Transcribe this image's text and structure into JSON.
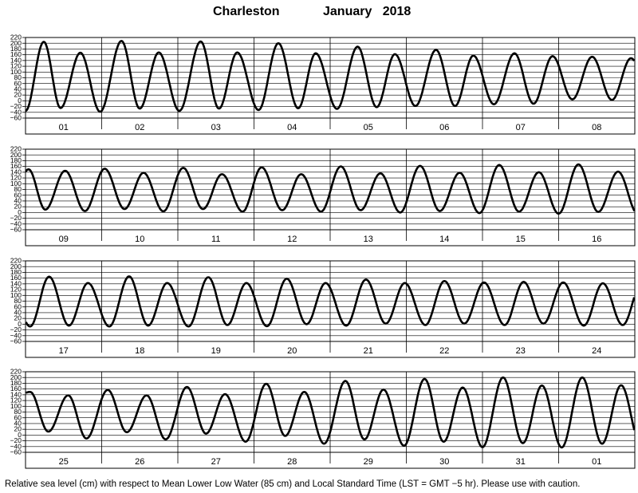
{
  "title": {
    "station": "Charleston",
    "month": "January   2018"
  },
  "footer_note": "Relative sea level (cm) with respect to Mean Lower Low Water (85 cm) and Local Standard Time (LST = GMT −5 hr). Please use with caution.",
  "chart_data": {
    "type": "line",
    "ylabel": "Relative sea level (cm)",
    "yticks": [
      "220",
      "200",
      "180",
      "160",
      "140",
      "120",
      "100",
      "80",
      "60",
      "40",
      "20",
      "0",
      "−20",
      "−40",
      "−60"
    ],
    "ylim": [
      -60,
      220
    ],
    "grid": true,
    "panels": [
      {
        "days": [
          "01",
          "02",
          "03",
          "04",
          "05",
          "06",
          "07",
          "08"
        ],
        "extremes": [
          {
            "day": 0.0,
            "h": -35
          },
          {
            "day": 0.24,
            "h": 205
          },
          {
            "day": 0.46,
            "h": -25
          },
          {
            "day": 0.72,
            "h": 167
          },
          {
            "day": 0.98,
            "h": -38
          },
          {
            "day": 1.26,
            "h": 208
          },
          {
            "day": 1.5,
            "h": -27
          },
          {
            "day": 1.75,
            "h": 168
          },
          {
            "day": 2.02,
            "h": -35
          },
          {
            "day": 2.3,
            "h": 206
          },
          {
            "day": 2.54,
            "h": -27
          },
          {
            "day": 2.78,
            "h": 168
          },
          {
            "day": 3.06,
            "h": -32
          },
          {
            "day": 3.32,
            "h": 200
          },
          {
            "day": 3.58,
            "h": -26
          },
          {
            "day": 3.81,
            "h": 165
          },
          {
            "day": 4.09,
            "h": -28
          },
          {
            "day": 4.36,
            "h": 188
          },
          {
            "day": 4.61,
            "h": -22
          },
          {
            "day": 4.85,
            "h": 162
          },
          {
            "day": 5.12,
            "h": -18
          },
          {
            "day": 5.39,
            "h": 177
          },
          {
            "day": 5.64,
            "h": -18
          },
          {
            "day": 5.88,
            "h": 157
          },
          {
            "day": 6.15,
            "h": -12
          },
          {
            "day": 6.42,
            "h": 165
          },
          {
            "day": 6.67,
            "h": -10
          },
          {
            "day": 6.92,
            "h": 155
          },
          {
            "day": 7.18,
            "h": 5
          },
          {
            "day": 7.44,
            "h": 153
          },
          {
            "day": 7.7,
            "h": 3
          },
          {
            "day": 7.95,
            "h": 148
          },
          {
            "day": 8.2,
            "h": 10
          }
        ]
      },
      {
        "days": [
          "09",
          "10",
          "11",
          "12",
          "13",
          "14",
          "15",
          "16"
        ],
        "extremes": [
          {
            "day": -0.04,
            "h": 135
          },
          {
            "day": 0.04,
            "h": 150
          },
          {
            "day": 0.26,
            "h": 10
          },
          {
            "day": 0.52,
            "h": 145
          },
          {
            "day": 0.78,
            "h": 5
          },
          {
            "day": 1.04,
            "h": 152
          },
          {
            "day": 1.3,
            "h": 12
          },
          {
            "day": 1.55,
            "h": 138
          },
          {
            "day": 1.81,
            "h": 4
          },
          {
            "day": 2.07,
            "h": 155
          },
          {
            "day": 2.33,
            "h": 12
          },
          {
            "day": 2.58,
            "h": 133
          },
          {
            "day": 2.85,
            "h": 3
          },
          {
            "day": 3.1,
            "h": 157
          },
          {
            "day": 3.37,
            "h": 8
          },
          {
            "day": 3.62,
            "h": 133
          },
          {
            "day": 3.88,
            "h": 3
          },
          {
            "day": 4.14,
            "h": 160
          },
          {
            "day": 4.4,
            "h": 8
          },
          {
            "day": 4.66,
            "h": 136
          },
          {
            "day": 4.92,
            "h": 0
          },
          {
            "day": 5.18,
            "h": 162
          },
          {
            "day": 5.44,
            "h": 5
          },
          {
            "day": 5.7,
            "h": 138
          },
          {
            "day": 5.96,
            "h": -2
          },
          {
            "day": 6.22,
            "h": 165
          },
          {
            "day": 6.48,
            "h": 3
          },
          {
            "day": 6.74,
            "h": 140
          },
          {
            "day": 7.0,
            "h": -4
          },
          {
            "day": 7.26,
            "h": 167
          },
          {
            "day": 7.52,
            "h": 2
          },
          {
            "day": 7.78,
            "h": 142
          },
          {
            "day": 8.04,
            "h": -5
          }
        ]
      },
      {
        "days": [
          "17",
          "18",
          "19",
          "20",
          "21",
          "22",
          "23",
          "24"
        ],
        "extremes": [
          {
            "day": -0.2,
            "h": 140
          },
          {
            "day": 0.06,
            "h": -8
          },
          {
            "day": 0.31,
            "h": 165
          },
          {
            "day": 0.57,
            "h": -5
          },
          {
            "day": 0.82,
            "h": 143
          },
          {
            "day": 1.1,
            "h": -8
          },
          {
            "day": 1.36,
            "h": 166
          },
          {
            "day": 1.61,
            "h": -5
          },
          {
            "day": 1.86,
            "h": 143
          },
          {
            "day": 2.14,
            "h": -8
          },
          {
            "day": 2.4,
            "h": 163
          },
          {
            "day": 2.65,
            "h": -3
          },
          {
            "day": 2.9,
            "h": 143
          },
          {
            "day": 3.17,
            "h": -7
          },
          {
            "day": 3.43,
            "h": 158
          },
          {
            "day": 3.69,
            "h": 0
          },
          {
            "day": 3.94,
            "h": 143
          },
          {
            "day": 4.21,
            "h": -5
          },
          {
            "day": 4.47,
            "h": 155
          },
          {
            "day": 4.73,
            "h": 2
          },
          {
            "day": 4.98,
            "h": 143
          },
          {
            "day": 5.25,
            "h": -3
          },
          {
            "day": 5.5,
            "h": 150
          },
          {
            "day": 5.76,
            "h": 2
          },
          {
            "day": 6.02,
            "h": 145
          },
          {
            "day": 6.29,
            "h": -3
          },
          {
            "day": 6.54,
            "h": 147
          },
          {
            "day": 6.8,
            "h": 2
          },
          {
            "day": 7.06,
            "h": 145
          },
          {
            "day": 7.33,
            "h": -5
          },
          {
            "day": 7.58,
            "h": 142
          },
          {
            "day": 7.84,
            "h": -3
          },
          {
            "day": 8.1,
            "h": 150
          }
        ]
      },
      {
        "days": [
          "25",
          "26",
          "27",
          "28",
          "29",
          "30",
          "31",
          "01"
        ],
        "extremes": [
          {
            "day": -0.2,
            "h": 120
          },
          {
            "day": 0.06,
            "h": 150
          },
          {
            "day": 0.3,
            "h": 12
          },
          {
            "day": 0.56,
            "h": 138
          },
          {
            "day": 0.8,
            "h": -12
          },
          {
            "day": 1.08,
            "h": 157
          },
          {
            "day": 1.33,
            "h": 10
          },
          {
            "day": 1.59,
            "h": 138
          },
          {
            "day": 1.84,
            "h": -15
          },
          {
            "day": 2.12,
            "h": 167
          },
          {
            "day": 2.37,
            "h": 5
          },
          {
            "day": 2.62,
            "h": 142
          },
          {
            "day": 2.89,
            "h": -23
          },
          {
            "day": 3.16,
            "h": 178
          },
          {
            "day": 3.41,
            "h": -3
          },
          {
            "day": 3.66,
            "h": 150
          },
          {
            "day": 3.92,
            "h": -30
          },
          {
            "day": 4.2,
            "h": 188
          },
          {
            "day": 4.45,
            "h": -15
          },
          {
            "day": 4.7,
            "h": 158
          },
          {
            "day": 4.97,
            "h": -37
          },
          {
            "day": 5.24,
            "h": 195
          },
          {
            "day": 5.49,
            "h": -23
          },
          {
            "day": 5.74,
            "h": 165
          },
          {
            "day": 6.0,
            "h": -42
          },
          {
            "day": 6.27,
            "h": 200
          },
          {
            "day": 6.53,
            "h": -28
          },
          {
            "day": 6.78,
            "h": 172
          },
          {
            "day": 7.04,
            "h": -43
          },
          {
            "day": 7.31,
            "h": 200
          },
          {
            "day": 7.57,
            "h": -30
          },
          {
            "day": 7.82,
            "h": 173
          },
          {
            "day": 8.08,
            "h": -35
          }
        ]
      }
    ]
  }
}
